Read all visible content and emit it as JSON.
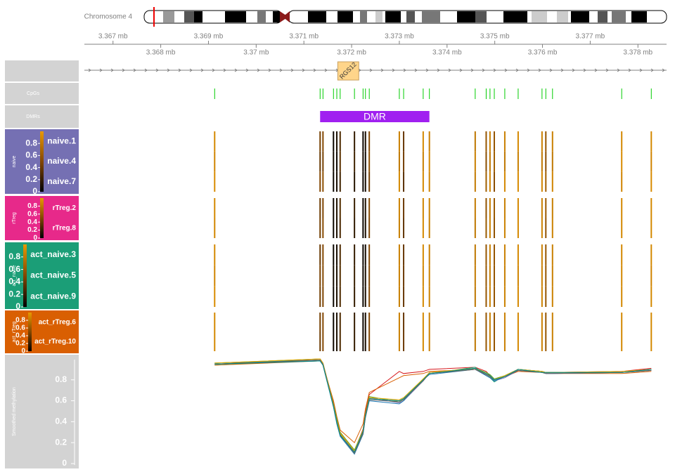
{
  "chart_data": {
    "type": "genome-tracks",
    "ideogram": {
      "label": "Chromosome 4"
    },
    "xlim": [
      3.3664,
      3.3786
    ],
    "xticks": [
      {
        "value": 3.367,
        "label": "3.367 mb"
      },
      {
        "value": 3.368,
        "label": "3.368 mb"
      },
      {
        "value": 3.369,
        "label": "3.369 mb"
      },
      {
        "value": 3.37,
        "label": "3.37 mb"
      },
      {
        "value": 3.371,
        "label": "3.371 mb"
      },
      {
        "value": 3.372,
        "label": "3.372 mb"
      },
      {
        "value": 3.373,
        "label": "3.373 mb"
      },
      {
        "value": 3.374,
        "label": "3.374 mb"
      },
      {
        "value": 3.375,
        "label": "3.375 mb"
      },
      {
        "value": 3.376,
        "label": "3.376 mb"
      },
      {
        "value": 3.377,
        "label": "3.377 mb"
      },
      {
        "value": 3.378,
        "label": "3.378 mb"
      }
    ],
    "gene": {
      "name": "RGS12",
      "start": 3.37171,
      "end": 3.37215,
      "color": "#ffd58a"
    },
    "cpgs": {
      "label": "CpGs",
      "color": "#00cc00",
      "positions": [
        3.36913,
        3.37134,
        3.3714,
        3.37162,
        3.37169,
        3.37176,
        3.37206,
        3.37224,
        3.37229,
        3.37237,
        3.373,
        3.37309,
        3.3735,
        3.37363,
        3.37459,
        3.37482,
        3.3749,
        3.37499,
        3.37521,
        3.37549,
        3.37599,
        3.37607,
        3.37621,
        3.37766,
        3.37828
      ]
    },
    "dmrs": {
      "label": "DMRs",
      "name": "DMR",
      "start": 3.37134,
      "end": 3.37363,
      "color": "#a020f0"
    },
    "legend_ticks": [
      0,
      0.2,
      0.4,
      0.6,
      0.8
    ],
    "groups": [
      {
        "label": "naive",
        "color": "#7570b3",
        "samples": [
          {
            "name": "naive.1",
            "line_color": "#d7191c",
            "values": [
              0.9,
              0.45,
              0.5,
              0.05,
              0.1,
              0.3,
              0.2,
              0.05,
              0.1,
              0.5,
              0.85,
              0.4,
              0.9,
              0.85,
              0.8,
              0.6,
              0.85,
              0.6,
              0.85,
              0.9,
              0.85,
              0.6,
              0.85,
              0.9,
              0.9
            ],
            "smooth": [
              0.95,
              1.0,
              0.96,
              0.58,
              0.42,
              0.3,
              0.12,
              0.33,
              0.5,
              0.66,
              0.88,
              0.86,
              0.88,
              0.9,
              0.92,
              0.88,
              0.84,
              0.8,
              0.84,
              0.9,
              0.88,
              0.87,
              0.87,
              0.88,
              0.91
            ]
          },
          {
            "name": "naive.4",
            "line_color": "#d95f02",
            "values": [
              0.88,
              0.4,
              0.45,
              0.08,
              0.05,
              0.35,
              0.25,
              0.08,
              0.05,
              0.55,
              0.8,
              0.45,
              0.85,
              0.9,
              0.85,
              0.55,
              0.8,
              0.65,
              0.8,
              0.85,
              0.8,
              0.55,
              0.8,
              0.92,
              0.88
            ],
            "smooth": [
              0.94,
              0.98,
              0.94,
              0.6,
              0.45,
              0.32,
              0.2,
              0.38,
              0.52,
              0.68,
              0.82,
              0.84,
              0.86,
              0.88,
              0.9,
              0.86,
              0.83,
              0.8,
              0.83,
              0.88,
              0.87,
              0.86,
              0.86,
              0.86,
              0.88
            ]
          },
          {
            "name": "naive.7",
            "line_color": "#1b9e77",
            "values": [
              0.92,
              0.5,
              0.55,
              0.05,
              0.08,
              0.25,
              0.15,
              0.05,
              0.08,
              0.45,
              0.9,
              0.35,
              0.9,
              0.88,
              0.82,
              0.65,
              0.88,
              0.55,
              0.9,
              0.92,
              0.88,
              0.65,
              0.88,
              0.88,
              0.92
            ],
            "smooth": [
              0.96,
              0.99,
              0.95,
              0.55,
              0.4,
              0.28,
              0.1,
              0.3,
              0.45,
              0.62,
              0.6,
              0.62,
              0.8,
              0.86,
              0.92,
              0.84,
              0.82,
              0.78,
              0.84,
              0.9,
              0.88,
              0.87,
              0.87,
              0.87,
              0.9
            ]
          }
        ]
      },
      {
        "label": "rTreg",
        "color": "#e7298a",
        "samples": [
          {
            "name": "rTreg.2",
            "line_color": "#7570b3",
            "values": [
              0.9,
              0.42,
              0.48,
              0.06,
              0.12,
              0.32,
              0.22,
              0.06,
              0.12,
              0.52,
              0.86,
              0.42,
              0.88,
              0.86,
              0.82,
              0.58,
              0.84,
              0.62,
              0.84,
              0.9,
              0.84,
              0.62,
              0.84,
              0.9,
              0.9
            ],
            "smooth": [
              0.95,
              0.99,
              0.95,
              0.56,
              0.41,
              0.29,
              0.11,
              0.31,
              0.46,
              0.63,
              0.58,
              0.6,
              0.79,
              0.87,
              0.9,
              0.85,
              0.83,
              0.79,
              0.82,
              0.89,
              0.87,
              0.86,
              0.86,
              0.87,
              0.89
            ]
          },
          {
            "name": "rTreg.8",
            "line_color": "#66a61e",
            "values": [
              0.89,
              0.44,
              0.52,
              0.05,
              0.1,
              0.28,
              0.18,
              0.05,
              0.1,
              0.48,
              0.84,
              0.38,
              0.9,
              0.84,
              0.8,
              0.62,
              0.86,
              0.58,
              0.86,
              0.9,
              0.86,
              0.58,
              0.86,
              0.9,
              0.9
            ],
            "smooth": [
              0.96,
              1.0,
              0.96,
              0.57,
              0.43,
              0.3,
              0.13,
              0.32,
              0.47,
              0.64,
              0.59,
              0.61,
              0.81,
              0.86,
              0.91,
              0.87,
              0.85,
              0.81,
              0.84,
              0.9,
              0.88,
              0.87,
              0.87,
              0.87,
              0.9
            ]
          }
        ]
      },
      {
        "label": "act_naive",
        "color": "#1b9e77",
        "samples": [
          {
            "name": "act_naive.3",
            "line_color": "#1f78b4",
            "values": [
              0.9,
              0.4,
              0.5,
              0.05,
              0.08,
              0.3,
              0.2,
              0.05,
              0.08,
              0.5,
              0.85,
              0.4,
              0.9,
              0.85,
              0.8,
              0.6,
              0.85,
              0.6,
              0.85,
              0.9,
              0.85,
              0.6,
              0.85,
              0.9,
              0.9
            ],
            "smooth": [
              0.95,
              0.98,
              0.94,
              0.54,
              0.38,
              0.26,
              0.09,
              0.28,
              0.44,
              0.6,
              0.57,
              0.6,
              0.8,
              0.85,
              0.9,
              0.84,
              0.82,
              0.79,
              0.83,
              0.89,
              0.87,
              0.86,
              0.86,
              0.87,
              0.89
            ]
          },
          {
            "name": "act_naive.5",
            "line_color": "#a6761d",
            "values": [
              0.88,
              0.46,
              0.5,
              0.08,
              0.1,
              0.32,
              0.22,
              0.06,
              0.1,
              0.5,
              0.85,
              0.42,
              0.88,
              0.86,
              0.82,
              0.6,
              0.84,
              0.6,
              0.84,
              0.88,
              0.85,
              0.6,
              0.85,
              0.9,
              0.88
            ],
            "smooth": [
              0.94,
              0.99,
              0.95,
              0.55,
              0.4,
              0.28,
              0.1,
              0.3,
              0.45,
              0.62,
              0.6,
              0.62,
              0.8,
              0.86,
              0.9,
              0.86,
              0.84,
              0.8,
              0.83,
              0.9,
              0.87,
              0.87,
              0.87,
              0.87,
              0.9
            ]
          },
          {
            "name": "act_naive.9",
            "line_color": "#e6ab02",
            "values": [
              0.92,
              0.44,
              0.48,
              0.05,
              0.1,
              0.3,
              0.2,
              0.05,
              0.1,
              0.5,
              0.84,
              0.4,
              0.9,
              0.86,
              0.8,
              0.6,
              0.86,
              0.6,
              0.86,
              0.9,
              0.86,
              0.6,
              0.86,
              0.9,
              0.9
            ],
            "smooth": [
              0.96,
              1.0,
              0.96,
              0.56,
              0.41,
              0.29,
              0.12,
              0.32,
              0.47,
              0.63,
              0.61,
              0.63,
              0.81,
              0.87,
              0.91,
              0.86,
              0.83,
              0.8,
              0.84,
              0.9,
              0.88,
              0.87,
              0.87,
              0.88,
              0.9
            ]
          }
        ]
      },
      {
        "label": "act_rTreg",
        "color": "#d95f02",
        "samples": [
          {
            "name": "act_rTreg.6",
            "line_color": "#666666",
            "values": [
              0.9,
              0.45,
              0.5,
              0.05,
              0.1,
              0.3,
              0.2,
              0.05,
              0.1,
              0.5,
              0.85,
              0.4,
              0.9,
              0.85,
              0.8,
              0.6,
              0.85,
              0.6,
              0.85,
              0.9,
              0.85,
              0.6,
              0.85,
              0.9,
              0.9
            ],
            "smooth": [
              0.95,
              0.99,
              0.95,
              0.55,
              0.4,
              0.27,
              0.1,
              0.29,
              0.44,
              0.61,
              0.59,
              0.61,
              0.79,
              0.86,
              0.9,
              0.85,
              0.83,
              0.8,
              0.83,
              0.89,
              0.87,
              0.86,
              0.86,
              0.87,
              0.89
            ]
          },
          {
            "name": "act_rTreg.10",
            "line_color": "#008b8b",
            "values": [
              0.9,
              0.42,
              0.5,
              0.06,
              0.1,
              0.3,
              0.2,
              0.06,
              0.1,
              0.5,
              0.85,
              0.42,
              0.9,
              0.85,
              0.8,
              0.6,
              0.85,
              0.6,
              0.85,
              0.9,
              0.85,
              0.6,
              0.85,
              0.9,
              0.9
            ],
            "smooth": [
              0.95,
              0.98,
              0.94,
              0.54,
              0.39,
              0.27,
              0.11,
              0.31,
              0.46,
              0.62,
              0.6,
              0.62,
              0.8,
              0.86,
              0.91,
              0.86,
              0.84,
              0.8,
              0.83,
              0.9,
              0.87,
              0.87,
              0.87,
              0.87,
              0.9
            ]
          }
        ]
      }
    ],
    "smoothed": {
      "label": "Smoothed methylation",
      "ylim": [
        0,
        1.04
      ],
      "yticks": [
        0,
        0.2,
        0.4,
        0.6,
        0.8
      ]
    }
  }
}
